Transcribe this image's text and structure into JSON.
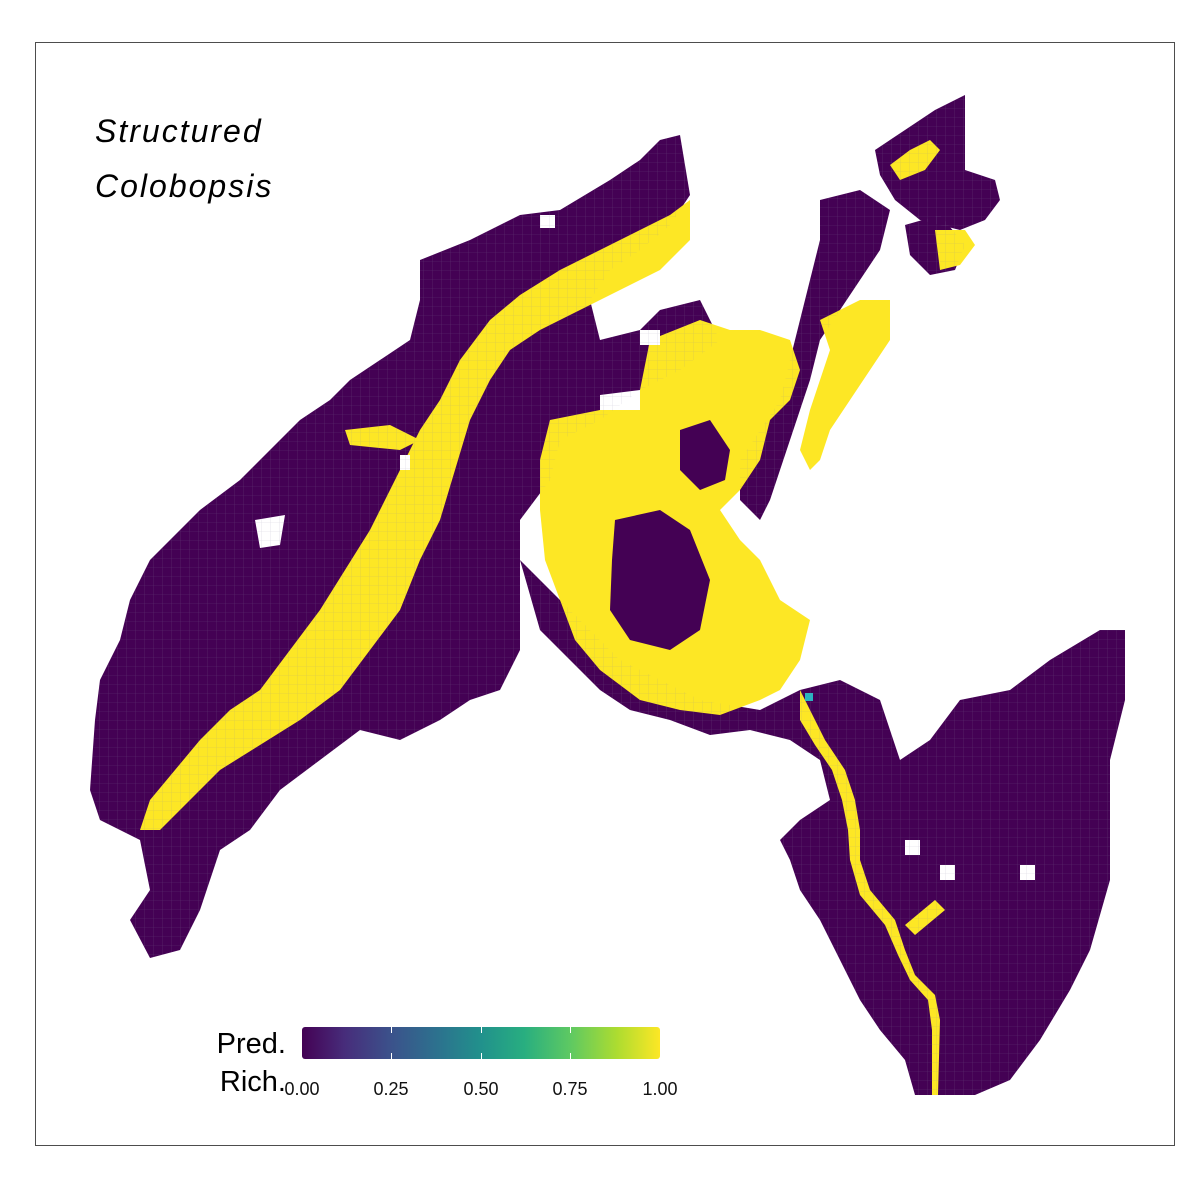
{
  "title": {
    "line1": "Structured",
    "line2": "Colobopsis"
  },
  "legend": {
    "label_line1": "Pred.",
    "label_line2": "Rich.",
    "colormap": "viridis",
    "range": [
      0,
      1
    ],
    "ticks": [
      "0.00",
      "0.25",
      "0.50",
      "0.75",
      "1.00"
    ],
    "colors": {
      "low": "#440154",
      "high": "#fde725"
    }
  },
  "map_colors": {
    "low_value_cells": "#440154",
    "high_value_cells": "#fde725",
    "intermediate_marker": "#29b5c0",
    "background": "#ffffff"
  },
  "map_values": {
    "dominant_values": [
      0,
      1
    ],
    "intermediate_marker_value": 0.55
  }
}
